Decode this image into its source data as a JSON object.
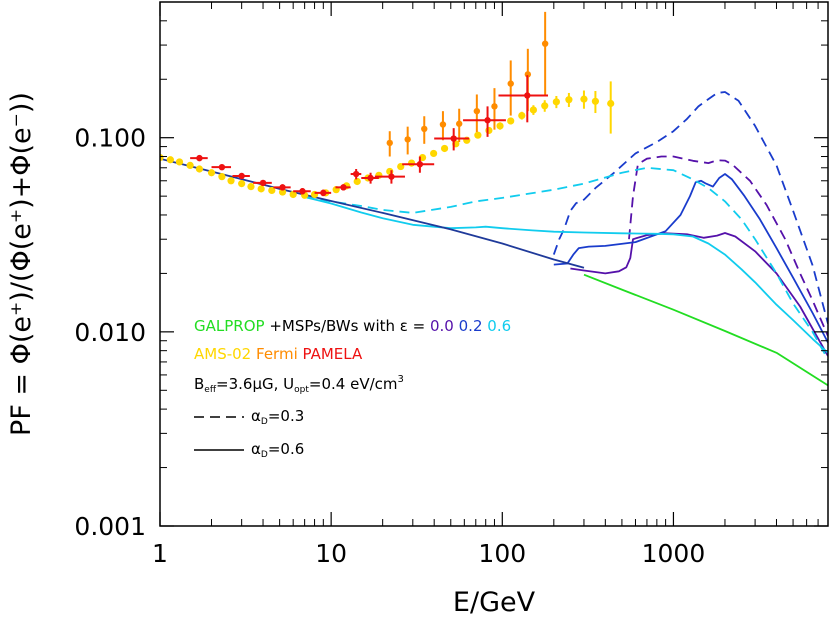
{
  "chart_data": {
    "type": "line",
    "xscale": "log",
    "yscale": "log",
    "xlim": [
      1,
      8000
    ],
    "ylim": [
      0.001,
      0.5
    ],
    "xlabel": "E/GeV",
    "ylabel": "PF = Φ(e⁺)/(Φ(e⁺)+Φ(e⁻))",
    "xticks": [
      {
        "value": 1,
        "label": "1"
      },
      {
        "value": 10,
        "label": "10"
      },
      {
        "value": 100,
        "label": "100"
      },
      {
        "value": 1000,
        "label": "1000"
      }
    ],
    "yticks": [
      {
        "value": 0.001,
        "label": "0.001"
      },
      {
        "value": 0.01,
        "label": "0.010"
      },
      {
        "value": 0.1,
        "label": "0.100"
      }
    ],
    "legend": {
      "line1": {
        "galprop": "GALPROP",
        "rest": " +MSPs/BWs with ε = ",
        "eps0": "0.0",
        "eps2": "0.2",
        "eps6": "0.6"
      },
      "line2": {
        "ams": "AMS-02",
        "fermi": "Fermi",
        "pamela": "PAMELA"
      },
      "line3": {
        "b": "B",
        "bsub": "eff",
        "bval": "=3.6μG, U",
        "usub": "opt",
        "uval": "=0.4 eV/cm",
        "usup": "3"
      },
      "line4": {
        "alpha": "α",
        "sub": "D",
        "val": "=0.3"
      },
      "line5": {
        "alpha": "α",
        "sub": "D",
        "val": "=0.6"
      }
    },
    "colors": {
      "galprop": "#22dd22",
      "eps00": "#5511aa",
      "eps02": "#1a3ccc",
      "eps06": "#11ccee",
      "ams": "#ffd700",
      "fermi": "#ff8c00",
      "pamela": "#ee1111",
      "baseline": "#1f3a9a"
    },
    "series": [
      {
        "name": "GALPROP",
        "color": "galprop",
        "dash": false,
        "x": [
          300,
          500,
          1000,
          2000,
          4000,
          8000
        ],
        "y": [
          0.0197,
          0.0165,
          0.013,
          0.0101,
          0.0078,
          0.0053
        ]
      },
      {
        "name": "eps0.0 aD=0.6",
        "color": "eps00",
        "dash": false,
        "x": [
          250,
          300,
          400,
          480,
          530,
          560,
          580,
          700,
          900,
          1200,
          1500,
          1800,
          2000,
          2300,
          3000,
          4000,
          5500,
          8000
        ],
        "y": [
          0.0212,
          0.0207,
          0.02,
          0.0205,
          0.0215,
          0.024,
          0.03,
          0.0315,
          0.0322,
          0.0318,
          0.0305,
          0.0313,
          0.0323,
          0.031,
          0.026,
          0.02,
          0.0135,
          0.0075
        ]
      },
      {
        "name": "eps0.0 aD=0.3",
        "color": "eps00",
        "dash": true,
        "x": [
          550,
          580,
          620,
          700,
          850,
          1000,
          1300,
          1600,
          1800,
          2000,
          2200,
          2800,
          3500,
          4500,
          5500,
          6500,
          8000
        ],
        "y": [
          0.03,
          0.05,
          0.073,
          0.078,
          0.08,
          0.08,
          0.076,
          0.074,
          0.0765,
          0.0762,
          0.073,
          0.06,
          0.045,
          0.03,
          0.02,
          0.0145,
          0.0095
        ]
      },
      {
        "name": "eps0.2 aD=0.6",
        "color": "eps02",
        "dash": false,
        "x": [
          200,
          240,
          260,
          280,
          320,
          400,
          600,
          900,
          1100,
          1250,
          1350,
          1450,
          1550,
          1700,
          1850,
          2000,
          2200,
          2600,
          3200,
          4000,
          5000,
          6500,
          8000
        ],
        "y": [
          0.0222,
          0.0225,
          0.025,
          0.027,
          0.0275,
          0.0277,
          0.029,
          0.033,
          0.04,
          0.05,
          0.059,
          0.06,
          0.058,
          0.056,
          0.062,
          0.065,
          0.061,
          0.05,
          0.038,
          0.027,
          0.019,
          0.0125,
          0.0088
        ]
      },
      {
        "name": "eps0.2 aD=0.3",
        "color": "eps02",
        "dash": true,
        "x": [
          200,
          215,
          230,
          250,
          270,
          300,
          350,
          450,
          600,
          800,
          1000,
          1200,
          1400,
          1600,
          1800,
          2000,
          2400,
          3000,
          4000,
          5000,
          6500,
          8000
        ],
        "y": [
          0.025,
          0.03,
          0.034,
          0.042,
          0.046,
          0.048,
          0.055,
          0.066,
          0.083,
          0.095,
          0.108,
          0.125,
          0.145,
          0.158,
          0.17,
          0.172,
          0.155,
          0.115,
          0.072,
          0.042,
          0.022,
          0.011
        ]
      },
      {
        "name": "eps0.6 aD=0.6",
        "color": "eps06",
        "dash": false,
        "x": [
          7,
          10,
          15,
          20,
          30,
          50,
          70,
          80,
          100,
          150,
          200,
          300,
          500,
          800,
          1000,
          1300,
          1600,
          2000,
          2500,
          3000,
          4000,
          5000,
          6500,
          8000
        ],
        "y": [
          0.0495,
          0.0458,
          0.0412,
          0.0385,
          0.0356,
          0.0342,
          0.0345,
          0.0348,
          0.0342,
          0.0333,
          0.0328,
          0.0325,
          0.0322,
          0.032,
          0.0318,
          0.031,
          0.0285,
          0.025,
          0.021,
          0.018,
          0.0138,
          0.0115,
          0.0092,
          0.0078
        ]
      },
      {
        "name": "eps0.6 aD=0.3",
        "color": "eps06",
        "dash": true,
        "x": [
          7,
          10,
          15,
          20,
          30,
          50,
          70,
          100,
          200,
          300,
          500,
          700,
          1000,
          1300,
          1600,
          2000,
          2500,
          3000,
          4000,
          5000,
          6500,
          8000
        ],
        "y": [
          0.0495,
          0.047,
          0.0445,
          0.0425,
          0.041,
          0.044,
          0.047,
          0.049,
          0.054,
          0.058,
          0.066,
          0.07,
          0.068,
          0.061,
          0.055,
          0.047,
          0.038,
          0.03,
          0.02,
          0.014,
          0.01,
          0.0072
        ]
      },
      {
        "name": "baseline",
        "color": "baseline",
        "dash": false,
        "x": [
          1,
          2,
          5,
          10,
          20,
          50,
          100,
          200,
          300
        ],
        "y": [
          0.078,
          0.067,
          0.0545,
          0.0472,
          0.041,
          0.0337,
          0.0285,
          0.0236,
          0.0214
        ]
      },
      {
        "name": "AMS-02",
        "color": "ams",
        "type": "points",
        "x": [
          1.0,
          1.15,
          1.3,
          1.5,
          1.7,
          2.0,
          2.3,
          2.6,
          3.0,
          3.4,
          3.9,
          4.5,
          5.2,
          6.0,
          7.0,
          8.0,
          9.3,
          10.7,
          12.3,
          14.2,
          16.4,
          19.0,
          22.0,
          25.5,
          29.5,
          34.2,
          39.7,
          46.0,
          53.5,
          62.0,
          72.0,
          83.5,
          97.0,
          112,
          130,
          152,
          177,
          207,
          245,
          300,
          350,
          430
        ],
        "y": [
          0.079,
          0.077,
          0.075,
          0.072,
          0.069,
          0.066,
          0.063,
          0.06,
          0.058,
          0.056,
          0.0545,
          0.0535,
          0.0525,
          0.051,
          0.0505,
          0.051,
          0.052,
          0.054,
          0.0565,
          0.0595,
          0.062,
          0.064,
          0.067,
          0.071,
          0.074,
          0.079,
          0.083,
          0.088,
          0.093,
          0.097,
          0.103,
          0.109,
          0.115,
          0.122,
          0.13,
          0.139,
          0.146,
          0.153,
          0.157,
          0.158,
          0.154,
          0.15
        ],
        "err": [
          0,
          0,
          0,
          0,
          0,
          0,
          0,
          0,
          0,
          0,
          0,
          0,
          0,
          0,
          0,
          0,
          0,
          0,
          0,
          0,
          0,
          0,
          0,
          0,
          0,
          0,
          0,
          0,
          0.003,
          0.003,
          0.003,
          0.004,
          0.005,
          0.005,
          0.006,
          0.008,
          0.01,
          0.011,
          0.013,
          0.017,
          0.02,
          0.045
        ]
      },
      {
        "name": "Fermi",
        "color": "fermi",
        "type": "points",
        "x": [
          22,
          28,
          35,
          45,
          56,
          71,
          90,
          112,
          141,
          178
        ],
        "y": [
          0.094,
          0.098,
          0.111,
          0.117,
          0.118,
          0.137,
          0.145,
          0.19,
          0.212,
          0.305
        ],
        "err": [
          0.014,
          0.016,
          0.018,
          0.02,
          0.023,
          0.03,
          0.035,
          0.06,
          0.075,
          0.14
        ]
      },
      {
        "name": "PAMELA",
        "color": "pamela",
        "type": "points",
        "x": [
          1.7,
          2.3,
          3.0,
          4.0,
          5.2,
          6.8,
          9.0,
          11.8,
          14.0,
          17.0,
          22.5,
          33.0,
          52.0,
          82.0,
          140
        ],
        "y": [
          0.0785,
          0.0705,
          0.0635,
          0.0585,
          0.0555,
          0.053,
          0.052,
          0.0555,
          0.065,
          0.062,
          0.063,
          0.073,
          0.099,
          0.123,
          0.165
        ],
        "err": [
          0.002,
          0.002,
          0.002,
          0.002,
          0.002,
          0.002,
          0.002,
          0.002,
          0.004,
          0.004,
          0.005,
          0.007,
          0.013,
          0.022,
          0.045
        ],
        "xerr": [
          0.2,
          0.3,
          0.35,
          0.5,
          0.6,
          0.8,
          1.0,
          1.2,
          1.0,
          2.0,
          4.5,
          7.0,
          12,
          23,
          45
        ]
      }
    ]
  }
}
